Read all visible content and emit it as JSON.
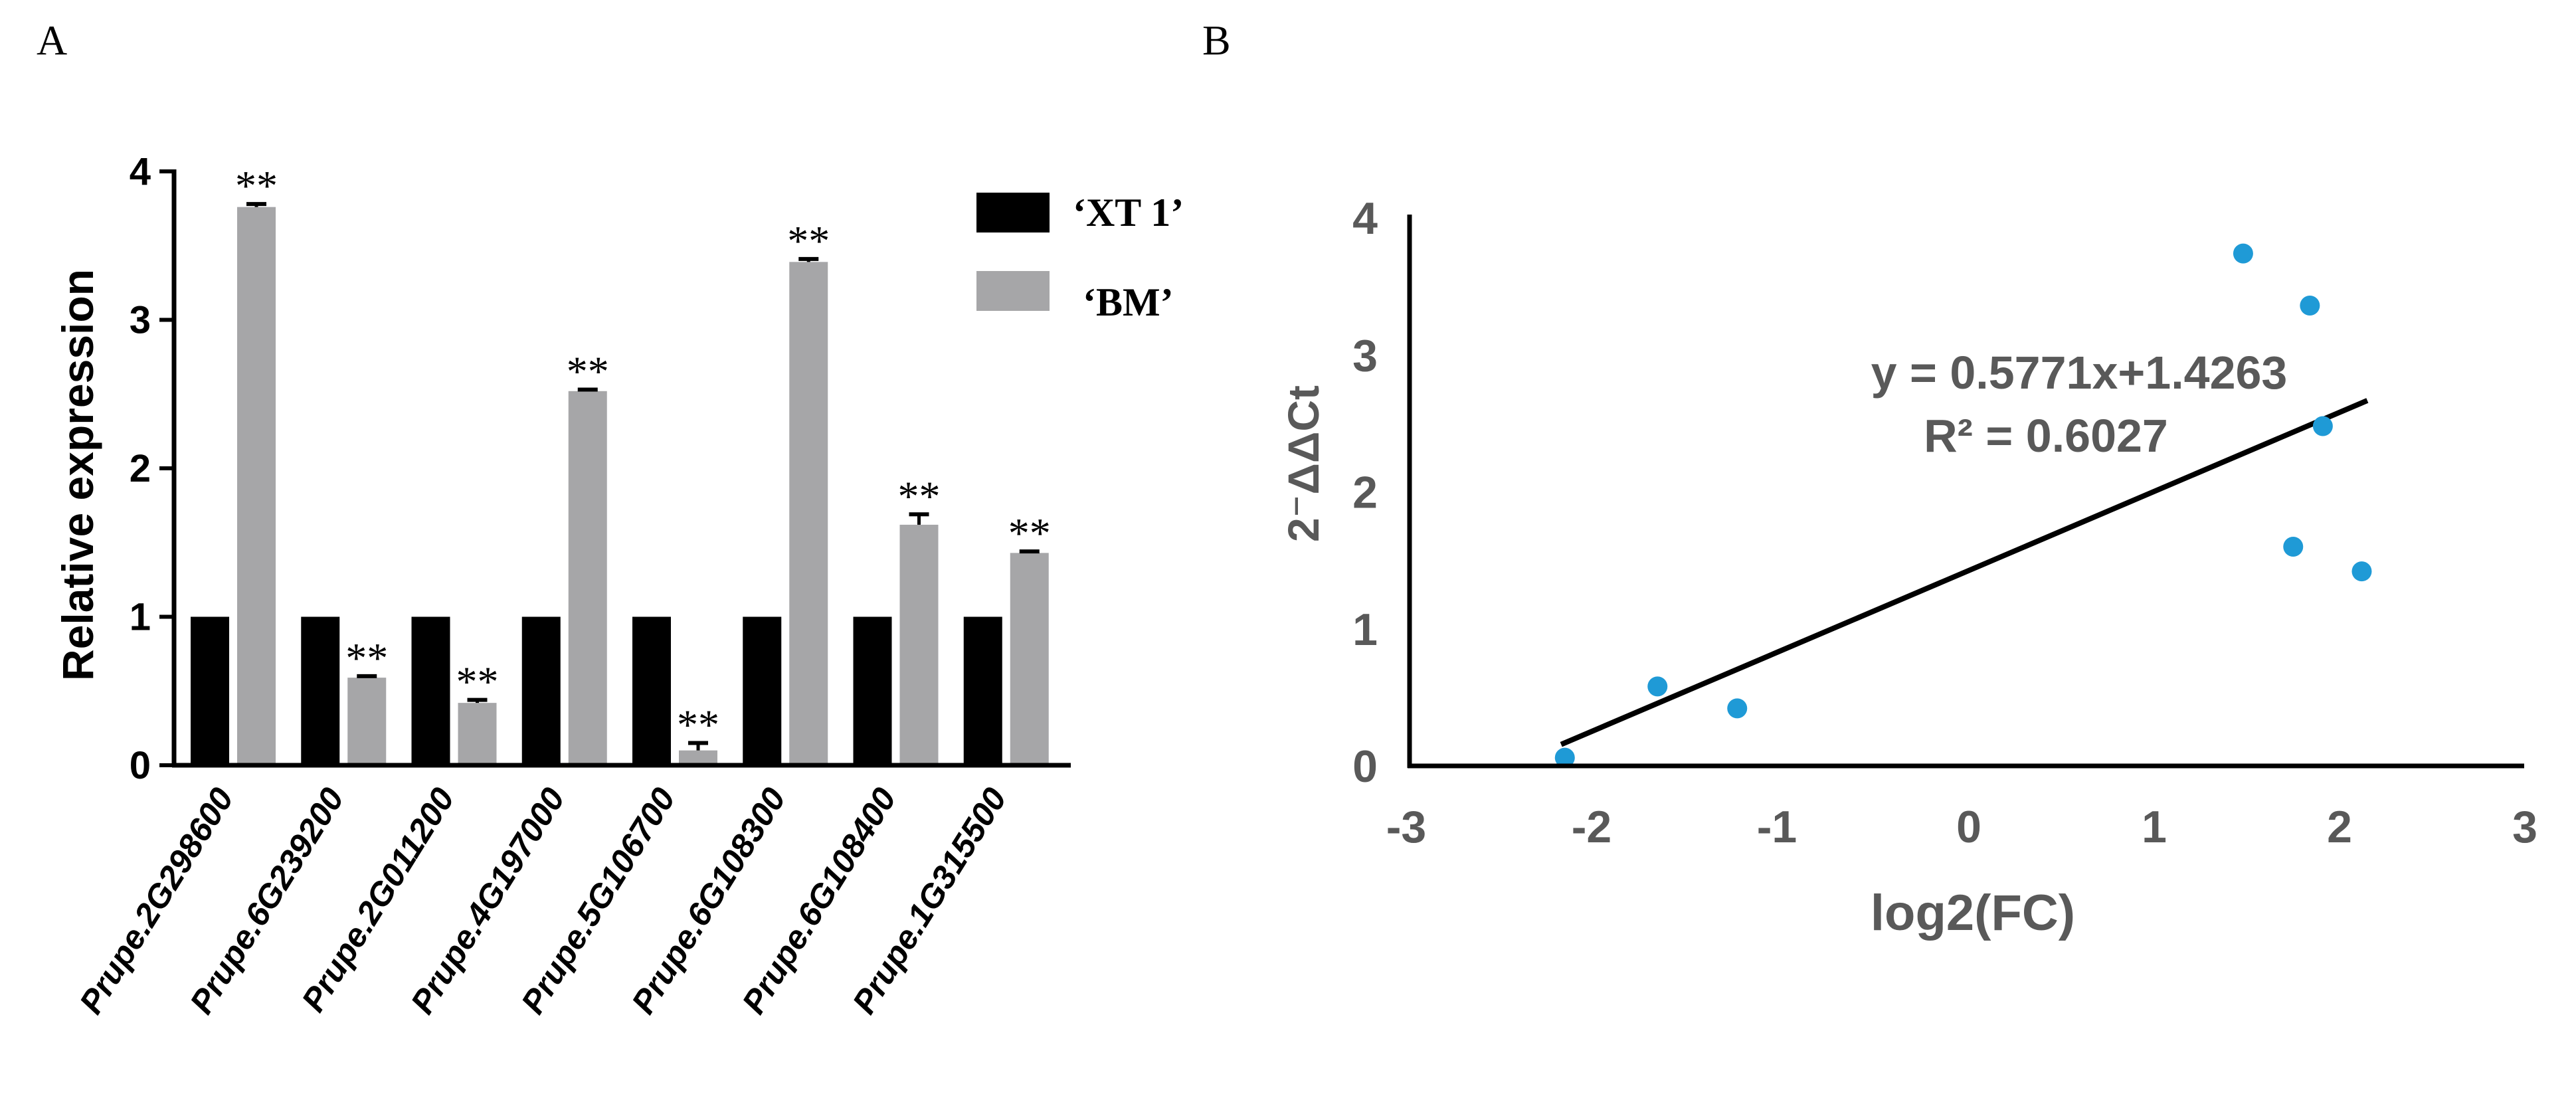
{
  "panels": {
    "a": {
      "label": "A"
    },
    "b": {
      "label": "B"
    }
  },
  "colors": {
    "xt1": "#000000",
    "bm": "#a6a6a8",
    "scatter_point": "#1f9ad6",
    "axis_b_text": "#595959",
    "fit_line": "#000000"
  },
  "chart_data": [
    {
      "id": "panel-a",
      "type": "bar",
      "title": "",
      "xlabel": "",
      "ylabel": "Relative expression",
      "ylim": [
        0,
        4
      ],
      "yticks": [
        "0",
        "1",
        "2",
        "3",
        "4"
      ],
      "categories": [
        "Prupe.2G298600",
        "Prupe.6G239200",
        "Prupe.2G011200",
        "Prupe.4G197000",
        "Prupe.5G106700",
        "Prupe.6G108300",
        "Prupe.6G108400",
        "Prupe.1G315500"
      ],
      "series": [
        {
          "name": "‘XT 1’",
          "values": [
            1,
            1,
            1,
            1,
            1,
            1,
            1,
            1
          ]
        },
        {
          "name": "‘BM’",
          "values": [
            3.76,
            0.59,
            0.42,
            2.52,
            0.1,
            3.39,
            1.62,
            1.43
          ],
          "errors": [
            0.02,
            0.01,
            0.02,
            0.0,
            0.05,
            0.02,
            0.07,
            0.01
          ]
        }
      ],
      "annotations": [
        "**",
        "**",
        "**",
        "**",
        "**",
        "**",
        "**",
        "**"
      ],
      "legend_position": "top-right"
    },
    {
      "id": "panel-b",
      "type": "scatter",
      "title": "",
      "xlabel": "log2(FC)",
      "ylabel": "2⁻ΔΔCt",
      "xlim": [
        -3,
        3
      ],
      "ylim": [
        0,
        4
      ],
      "xticks": [
        "-3",
        "-2",
        "-1",
        "0",
        "1",
        "2",
        "3"
      ],
      "yticks": [
        "0",
        "1",
        "2",
        "3",
        "4"
      ],
      "points": [
        {
          "x": -2.18,
          "y": 0.06
        },
        {
          "x": -1.68,
          "y": 0.58
        },
        {
          "x": -1.25,
          "y": 0.42
        },
        {
          "x": 1.48,
          "y": 3.74
        },
        {
          "x": 1.84,
          "y": 3.36
        },
        {
          "x": 1.91,
          "y": 2.48
        },
        {
          "x": 1.75,
          "y": 1.6
        },
        {
          "x": 2.12,
          "y": 1.42
        }
      ],
      "trendline": {
        "slope": 0.5771,
        "intercept": 1.4263,
        "x_range": [
          -2.2,
          2.15
        ]
      },
      "equation": "y = 0.5771x+1.4263",
      "r_squared": "R² = 0.6027"
    }
  ]
}
